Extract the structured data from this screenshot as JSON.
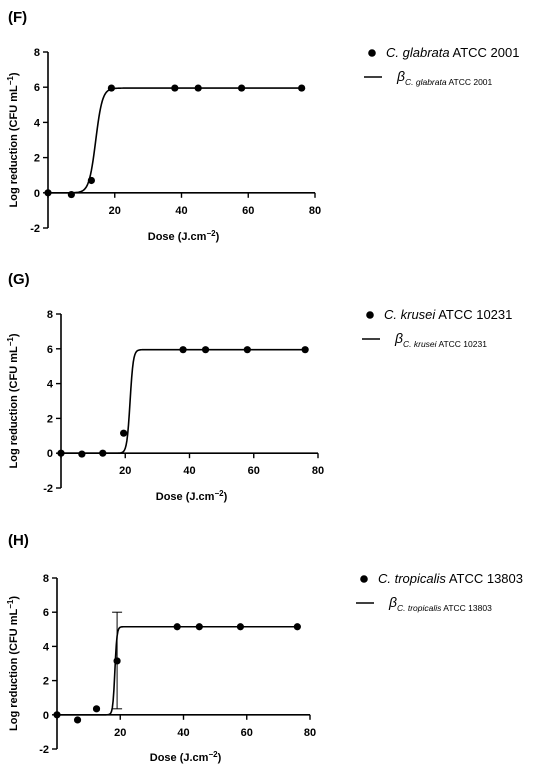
{
  "chart_data": [
    {
      "type": "scatter",
      "panel": "(F)",
      "xlabel": "Dose (J.cm",
      "xlabel_sup": "−2",
      "xlabel_end": ")",
      "ylabel": "Log reduction (CFU mL",
      "ylabel_sup": "−1",
      "ylabel_end": ")",
      "xlim": [
        0,
        80
      ],
      "ylim": [
        -2,
        8
      ],
      "xticks": [
        0,
        20,
        40,
        60,
        80
      ],
      "xtick_labels": [
        "20",
        "40",
        "60",
        "80"
      ],
      "yticks": [
        -2,
        0,
        2,
        4,
        6,
        8
      ],
      "ytick_labels": [
        "-2",
        "0",
        "2",
        "4",
        "6",
        "8"
      ],
      "grid": false,
      "legend_position": "right",
      "series": [
        {
          "name_italic": "C. glabrata",
          "name_rest": " ATCC 2001",
          "x": [
            0,
            7,
            13,
            19,
            38,
            45,
            58,
            76
          ],
          "y": [
            0,
            -0.1,
            0.7,
            5.95,
            5.95,
            5.95,
            5.95,
            5.95
          ]
        }
      ],
      "fit": {
        "symbol": "β",
        "sub_italic": "C. glabrata",
        "sub_rest": " ATCC 2001",
        "model": "sigmoid",
        "bottom": 0,
        "top": 5.95,
        "x50": 14.3,
        "slope": 1.0
      }
    },
    {
      "type": "scatter",
      "panel": "(G)",
      "xlabel": "Dose (J.cm",
      "xlabel_sup": "−2",
      "xlabel_end": ")",
      "ylabel": "Log reduction (CFU mL",
      "ylabel_sup": "−1",
      "ylabel_end": ")",
      "xlim": [
        0,
        80
      ],
      "ylim": [
        -2,
        8
      ],
      "xticks": [
        0,
        20,
        40,
        60,
        80
      ],
      "xtick_labels": [
        "20",
        "40",
        "60",
        "80"
      ],
      "yticks": [
        -2,
        0,
        2,
        4,
        6,
        8
      ],
      "ytick_labels": [
        "-2",
        "0",
        "2",
        "4",
        "6",
        "8"
      ],
      "grid": false,
      "legend_position": "right",
      "series": [
        {
          "name_italic": "C. krusei",
          "name_rest": " ATCC 10231",
          "x": [
            0,
            6.5,
            13,
            19.5,
            38,
            45,
            58,
            76
          ],
          "y": [
            0,
            -0.05,
            0,
            1.15,
            5.95,
            5.95,
            5.95,
            5.95
          ]
        }
      ],
      "fit": {
        "symbol": "β",
        "sub_italic": "C. krusei",
        "sub_rest": " ATCC 10231",
        "model": "sigmoid",
        "bottom": 0,
        "top": 5.95,
        "x50": 21.5,
        "slope": 0.5
      }
    },
    {
      "type": "scatter",
      "panel": "(H)",
      "xlabel": "Dose (J.cm",
      "xlabel_sup": "−2",
      "xlabel_end": ")",
      "ylabel": "Log reduction (CFU mL",
      "ylabel_sup": "−1",
      "ylabel_end": ")",
      "xlim": [
        0,
        80
      ],
      "ylim": [
        -2,
        8
      ],
      "xticks": [
        0,
        20,
        40,
        60,
        80
      ],
      "xtick_labels": [
        "20",
        "40",
        "60",
        "80"
      ],
      "yticks": [
        -2,
        0,
        2,
        4,
        6,
        8
      ],
      "ytick_labels": [
        "-2",
        "0",
        "2",
        "4",
        "6",
        "8"
      ],
      "grid": false,
      "legend_position": "right",
      "series": [
        {
          "name_italic": "C. tropicalis",
          "name_rest": " ATCC 13803",
          "x": [
            0,
            6.5,
            12.5,
            19,
            38,
            45,
            58,
            76
          ],
          "y": [
            0,
            -0.3,
            0.35,
            3.15,
            5.15,
            5.15,
            5.15,
            5.15
          ],
          "error": [
            null,
            null,
            null,
            [
              0.35,
              6.0
            ],
            null,
            null,
            null,
            null
          ]
        }
      ],
      "fit": {
        "symbol": "β",
        "sub_italic": "C. tropicalis",
        "sub_rest": " ATCC 13803",
        "model": "sigmoid",
        "bottom": 0,
        "top": 5.15,
        "x50": 18.3,
        "slope": 0.33
      }
    }
  ]
}
